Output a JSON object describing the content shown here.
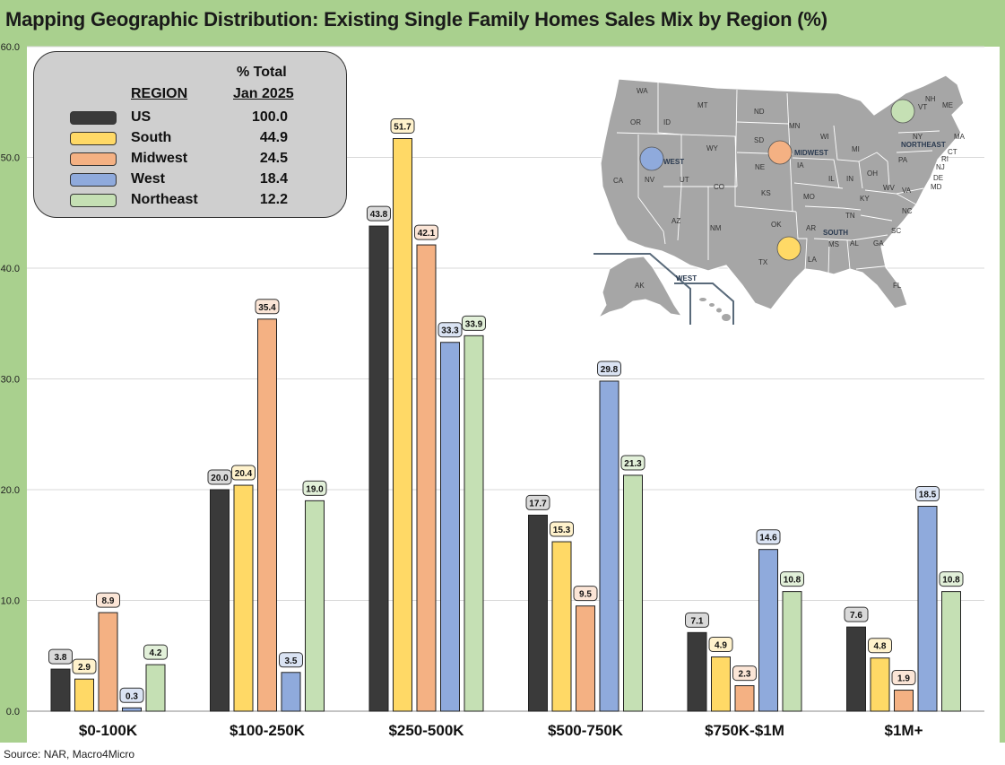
{
  "title": "Mapping Geographic Distribution: Existing Single Family Homes Sales Mix by Region (%)",
  "source": "Source: NAR, Macro4Micro",
  "legend": {
    "region_header": "REGION",
    "total_header_1": "% Total",
    "total_header_2": "Jan 2025",
    "rows": [
      {
        "name": "US",
        "value": "100.0",
        "color": "#3a3a3a"
      },
      {
        "name": "South",
        "value": "44.9",
        "color": "#ffd966"
      },
      {
        "name": "Midwest",
        "value": "24.5",
        "color": "#f4b183"
      },
      {
        "name": "West",
        "value": "18.4",
        "color": "#8faadc"
      },
      {
        "name": "Northeast",
        "value": "12.2",
        "color": "#c5e0b4"
      }
    ]
  },
  "map": {
    "states": [
      "WA",
      "OR",
      "ID",
      "MT",
      "WY",
      "CA",
      "NV",
      "UT",
      "CO",
      "AZ",
      "NM",
      "ND",
      "SD",
      "NE",
      "KS",
      "OK",
      "TX",
      "MN",
      "IA",
      "MO",
      "AR",
      "LA",
      "WI",
      "IL",
      "MI",
      "IN",
      "OH",
      "KY",
      "TN",
      "MS",
      "AL",
      "GA",
      "FL",
      "SC",
      "NC",
      "VA",
      "WV",
      "PA",
      "NY",
      "VT",
      "NH",
      "ME",
      "MA",
      "CT",
      "RI",
      "NJ",
      "DE",
      "MD",
      "AK"
    ],
    "region_labels": {
      "west": "WEST",
      "midwest": "MIDWEST",
      "south": "SOUTH",
      "northeast": "NORTHEAST",
      "west_inset": "WEST"
    }
  },
  "chart_data": {
    "type": "bar",
    "categories": [
      "$0-100K",
      "$100-250K",
      "$250-500K",
      "$500-750K",
      "$750K-$1M",
      "$1M+"
    ],
    "series": [
      {
        "name": "US",
        "color": "#3a3a3a",
        "label_bg": "#d9d9d9",
        "values": [
          3.8,
          20.0,
          43.8,
          17.7,
          7.1,
          7.6
        ]
      },
      {
        "name": "South",
        "color": "#ffd966",
        "label_bg": "#fff2cc",
        "values": [
          2.9,
          20.4,
          51.7,
          15.3,
          4.9,
          4.8
        ]
      },
      {
        "name": "Midwest",
        "color": "#f4b183",
        "label_bg": "#fbe5d6",
        "values": [
          8.9,
          35.4,
          42.1,
          9.5,
          2.3,
          1.9
        ]
      },
      {
        "name": "West",
        "color": "#8faadc",
        "label_bg": "#dae3f3",
        "values": [
          0.3,
          3.5,
          33.3,
          29.8,
          14.6,
          18.5
        ]
      },
      {
        "name": "Northeast",
        "color": "#c5e0b4",
        "label_bg": "#e2f0d9",
        "values": [
          4.2,
          19.0,
          33.9,
          21.3,
          10.8,
          10.8
        ]
      }
    ],
    "yticks": [
      "0.0",
      "10.0",
      "20.0",
      "30.0",
      "40.0",
      "50.0",
      "60.0"
    ],
    "ylim": [
      0,
      60
    ],
    "grid": true,
    "legend": "top-left"
  }
}
